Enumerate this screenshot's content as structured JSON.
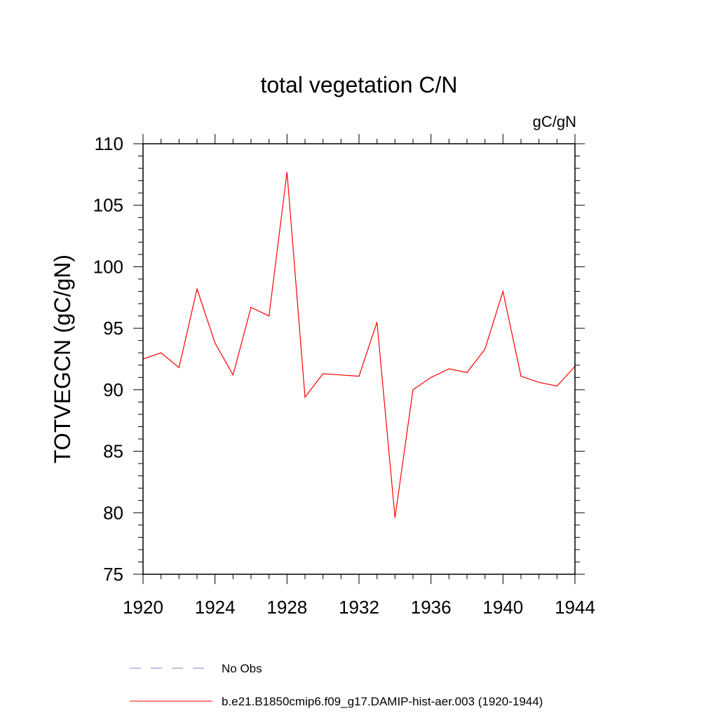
{
  "chart_data": {
    "type": "line",
    "title": "total vegetation C/N",
    "units": "gC/gN",
    "ylabel": "TOTVEGCN  (gC/gN)",
    "xlabel": "",
    "xlim": [
      1920,
      1944
    ],
    "ylim": [
      75,
      110
    ],
    "x_ticks": [
      1920,
      1924,
      1928,
      1932,
      1936,
      1940,
      1944
    ],
    "y_ticks": [
      75,
      80,
      85,
      90,
      95,
      100,
      105,
      110
    ],
    "grid": false,
    "legend_position": "bottom",
    "series": [
      {
        "name": "b.e21.B1850cmip6.f09_g17.DAMIP-hist-aer.003 (1920-1944)",
        "color": "#ff0000",
        "style": "solid",
        "x": [
          1920,
          1921,
          1922,
          1923,
          1924,
          1925,
          1926,
          1927,
          1928,
          1929,
          1930,
          1931,
          1932,
          1933,
          1934,
          1935,
          1936,
          1937,
          1938,
          1939,
          1940,
          1941,
          1942,
          1943,
          1944
        ],
        "y": [
          92.5,
          93.0,
          91.8,
          98.2,
          93.8,
          91.2,
          96.7,
          96.0,
          107.7,
          89.4,
          91.3,
          91.2,
          91.1,
          95.5,
          79.6,
          90.0,
          91.0,
          91.7,
          91.4,
          93.3,
          98.0,
          91.1,
          90.6,
          90.3,
          91.9
        ]
      }
    ],
    "legend": [
      {
        "label": "No Obs",
        "color": "#8080c0",
        "style": "dashed"
      },
      {
        "label": "b.e21.B1850cmip6.f09_g17.DAMIP-hist-aer.003 (1920-1944)",
        "color": "#ff0000",
        "style": "solid"
      }
    ]
  }
}
